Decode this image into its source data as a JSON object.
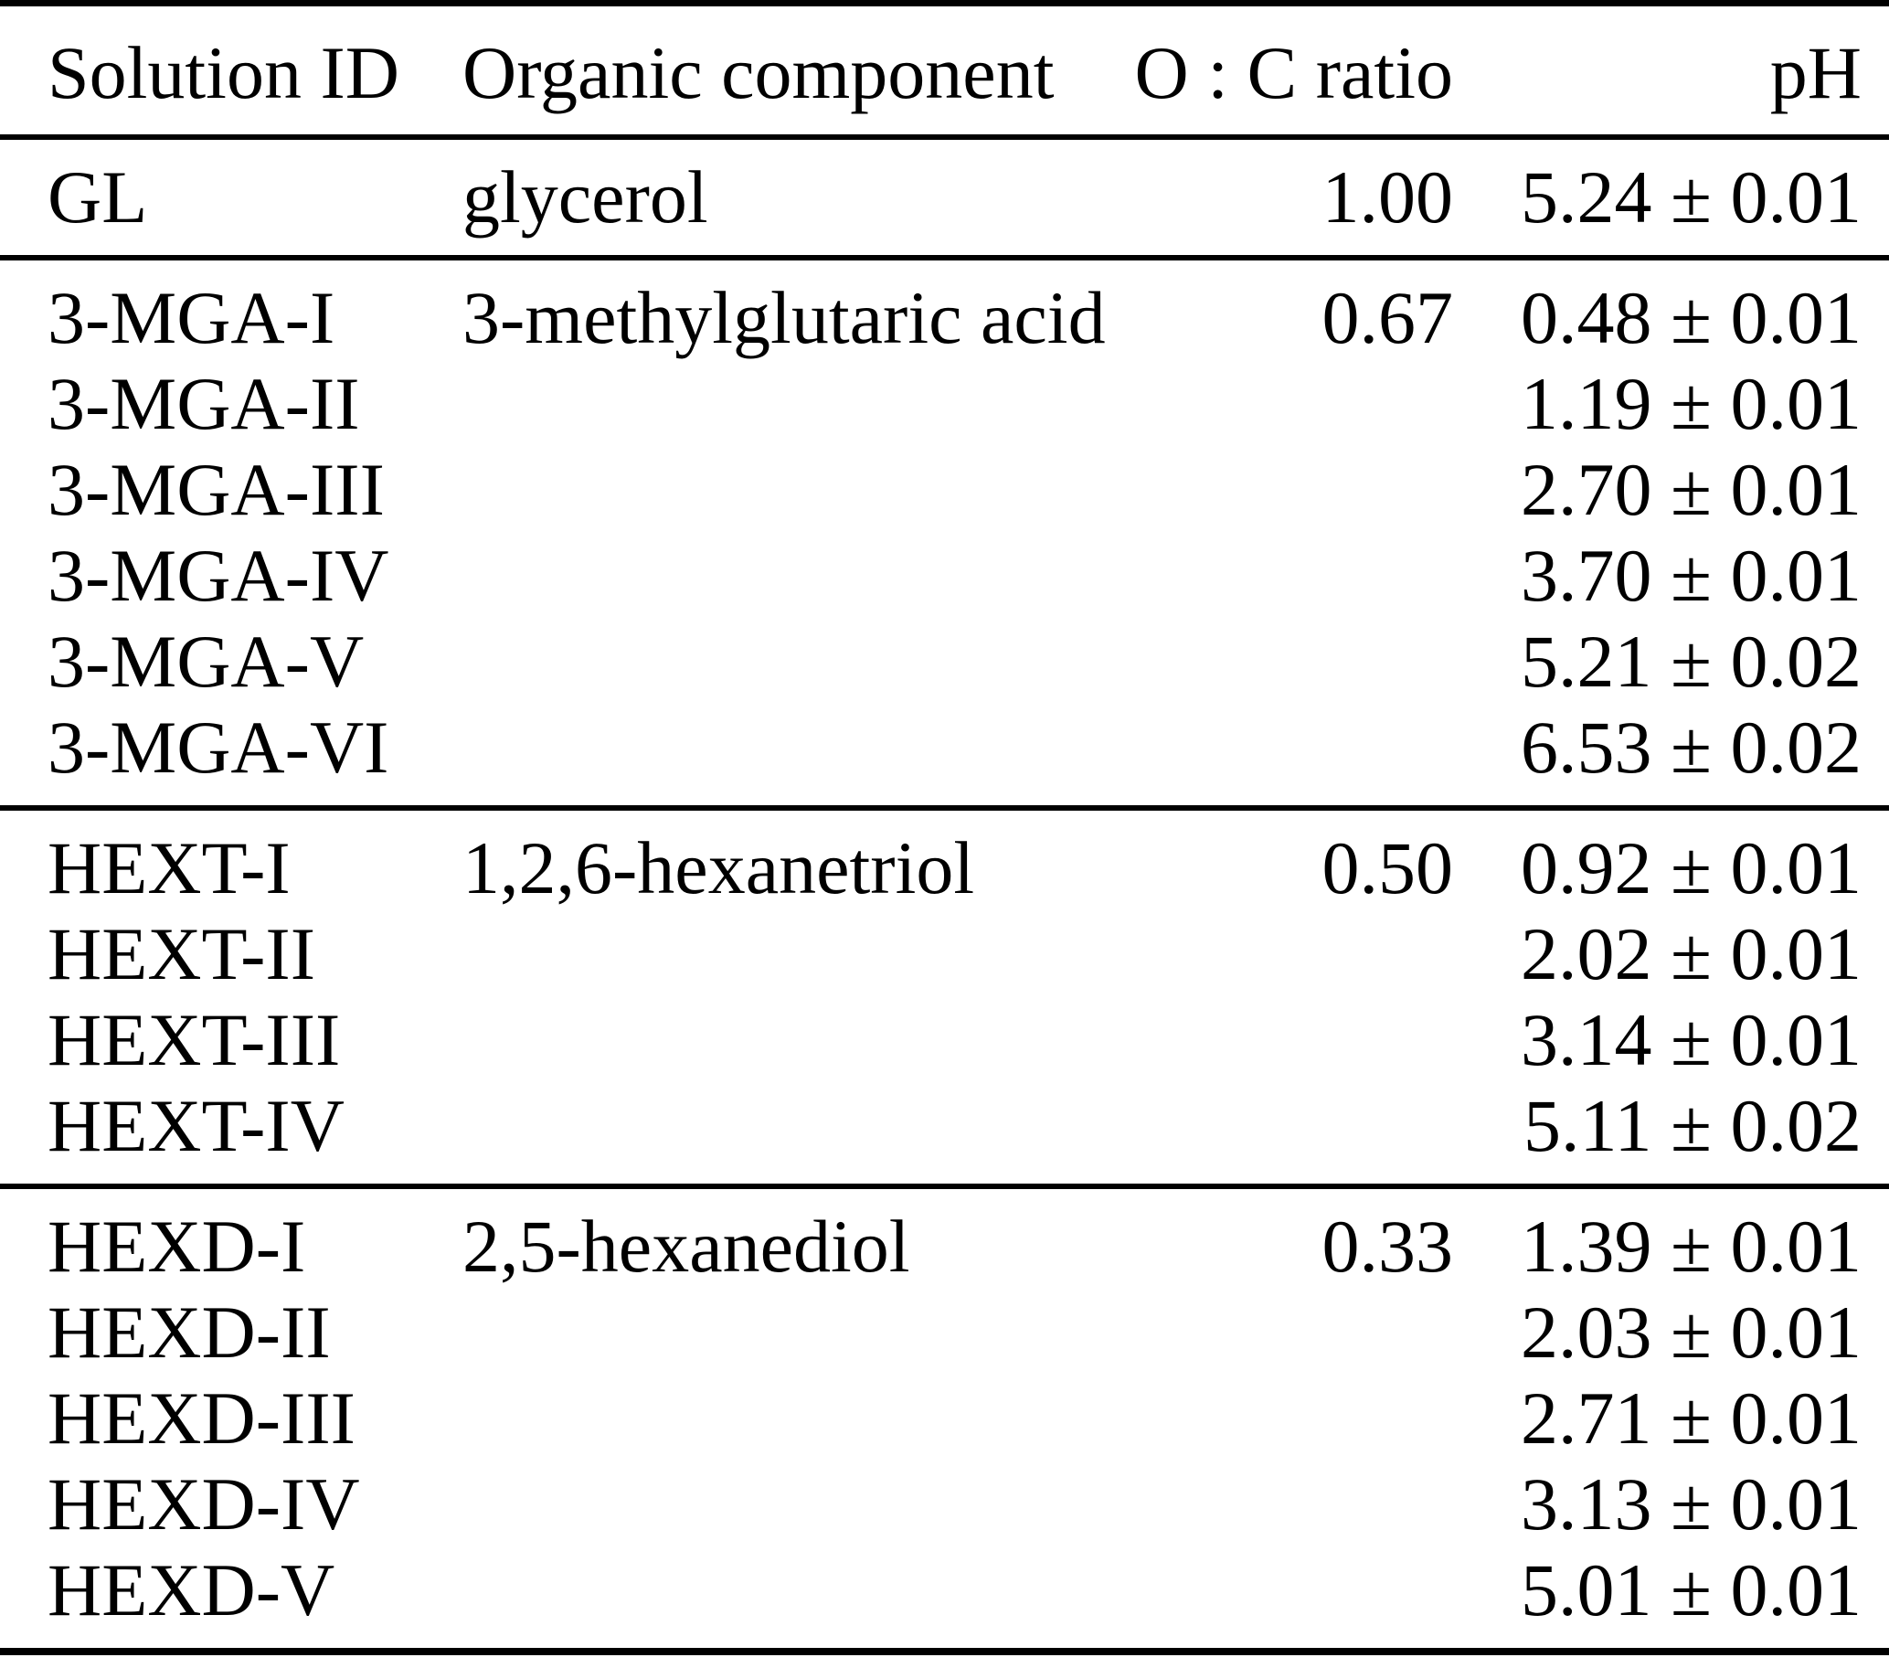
{
  "table": {
    "columns": [
      {
        "label": "Solution ID"
      },
      {
        "label": "Organic component"
      },
      {
        "label": "O : C ratio"
      },
      {
        "label": "pH"
      }
    ],
    "groups": [
      {
        "organic": "glycerol",
        "oc_ratio": "1.00",
        "rows": [
          {
            "id": "GL",
            "ph": "5.24 ± 0.01"
          }
        ]
      },
      {
        "organic": "3-methylglutaric acid",
        "oc_ratio": "0.67",
        "rows": [
          {
            "id": "3-MGA-I",
            "ph": "0.48 ± 0.01"
          },
          {
            "id": "3-MGA-II",
            "ph": "1.19 ± 0.01"
          },
          {
            "id": "3-MGA-III",
            "ph": "2.70 ± 0.01"
          },
          {
            "id": "3-MGA-IV",
            "ph": "3.70 ± 0.01"
          },
          {
            "id": "3-MGA-V",
            "ph": "5.21 ± 0.02"
          },
          {
            "id": "3-MGA-VI",
            "ph": "6.53 ± 0.02"
          }
        ]
      },
      {
        "organic": "1,2,6-hexanetriol",
        "oc_ratio": "0.50",
        "rows": [
          {
            "id": "HEXT-I",
            "ph": "0.92 ± 0.01"
          },
          {
            "id": "HEXT-II",
            "ph": "2.02 ± 0.01"
          },
          {
            "id": "HEXT-III",
            "ph": "3.14 ± 0.01"
          },
          {
            "id": "HEXT-IV",
            "ph": "5.11 ± 0.02"
          }
        ]
      },
      {
        "organic": "2,5-hexanediol",
        "oc_ratio": "0.33",
        "rows": [
          {
            "id": "HEXD-I",
            "ph": "1.39 ± 0.01"
          },
          {
            "id": "HEXD-II",
            "ph": "2.03 ± 0.01"
          },
          {
            "id": "HEXD-III",
            "ph": "2.71 ± 0.01"
          },
          {
            "id": "HEXD-IV",
            "ph": "3.13 ± 0.01"
          },
          {
            "id": "HEXD-V",
            "ph": "5.01 ± 0.01"
          }
        ]
      }
    ]
  }
}
